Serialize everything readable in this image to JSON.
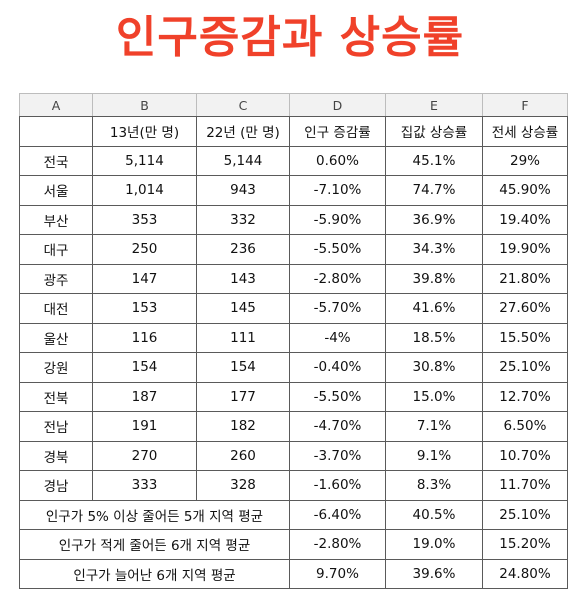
{
  "title": "인구증감과 상승률",
  "columns": [
    "A",
    "B",
    "C",
    "D",
    "E",
    "F"
  ],
  "header": [
    "",
    "13년(만 명)",
    "22년 (만 명)",
    "인구 증감률",
    "집값 상승률",
    "전세 상승률"
  ],
  "rows": [
    [
      "전국",
      "5,114",
      "5,144",
      "0.60%",
      "45.1%",
      "29%"
    ],
    [
      "서울",
      "1,014",
      "943",
      "-7.10%",
      "74.7%",
      "45.90%"
    ],
    [
      "부산",
      "353",
      "332",
      "-5.90%",
      "36.9%",
      "19.40%"
    ],
    [
      "대구",
      "250",
      "236",
      "-5.50%",
      "34.3%",
      "19.90%"
    ],
    [
      "광주",
      "147",
      "143",
      "-2.80%",
      "39.8%",
      "21.80%"
    ],
    [
      "대전",
      "153",
      "145",
      "-5.70%",
      "41.6%",
      "27.60%"
    ],
    [
      "울산",
      "116",
      "111",
      "-4%",
      "18.5%",
      "15.50%"
    ],
    [
      "강원",
      "154",
      "154",
      "-0.40%",
      "30.8%",
      "25.10%"
    ],
    [
      "전북",
      "187",
      "177",
      "-5.50%",
      "15.0%",
      "12.70%"
    ],
    [
      "전남",
      "191",
      "182",
      "-4.70%",
      "7.1%",
      "6.50%"
    ],
    [
      "경북",
      "270",
      "260",
      "-3.70%",
      "9.1%",
      "10.70%"
    ],
    [
      "경남",
      "333",
      "328",
      "-1.60%",
      "8.3%",
      "11.70%"
    ]
  ],
  "summary": [
    [
      "인구가 5% 이상 줄어든 5개 지역 평균",
      "-6.40%",
      "40.5%",
      "25.10%"
    ],
    [
      "인구가 적게 줄어든 6개 지역 평균",
      "-2.80%",
      "19.0%",
      "15.20%"
    ],
    [
      "인구가 늘어난 6개 지역 평균",
      "9.70%",
      "39.6%",
      "24.80%"
    ]
  ]
}
